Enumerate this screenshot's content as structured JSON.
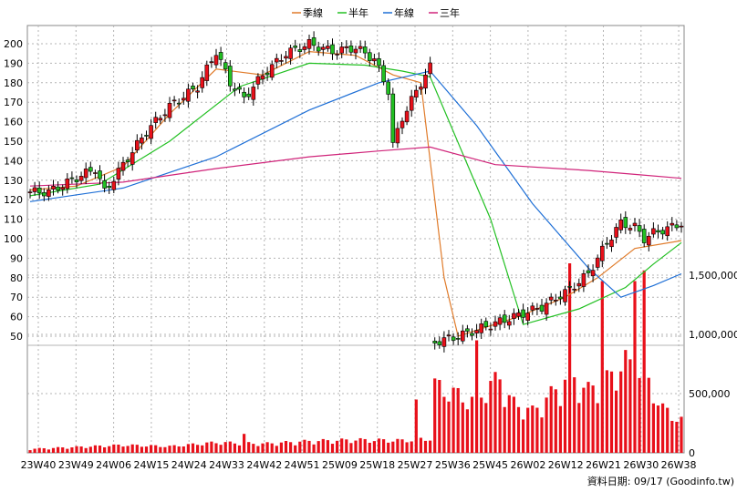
{
  "legend": [
    {
      "label": "季線",
      "color": "#e07b2a"
    },
    {
      "label": "半年",
      "color": "#22c022"
    },
    {
      "label": "年線",
      "color": "#1e6fd6"
    },
    {
      "label": "三年",
      "color": "#d0247a"
    }
  ],
  "footer_source": "資料日期: 09/17 (Goodinfo.tw)",
  "chart_data": {
    "type": "candlestick+volume",
    "x_tick_labels": [
      "23W40",
      "23W49",
      "24W06",
      "24W15",
      "24W24",
      "24W33",
      "24W42",
      "24W51",
      "25W09",
      "25W18",
      "25W27",
      "25W36",
      "25W45",
      "26W02",
      "26W12",
      "26W21",
      "26W30",
      "26W38"
    ],
    "price_axis": {
      "ylim": [
        50,
        200
      ],
      "ticks": [
        50,
        60,
        70,
        80,
        90,
        100,
        110,
        120,
        130,
        140,
        150,
        160,
        170,
        180,
        190,
        200
      ]
    },
    "volume_axis": {
      "ticks": [
        0,
        500000,
        1000000,
        1500000
      ],
      "tick_labels": [
        "0",
        "500,000",
        "1,000,000",
        "1,500,000"
      ]
    },
    "close_keypoints": [
      [
        0,
        124
      ],
      [
        4,
        124
      ],
      [
        9,
        130
      ],
      [
        14,
        136
      ],
      [
        16,
        124
      ],
      [
        20,
        138
      ],
      [
        25,
        155
      ],
      [
        30,
        168
      ],
      [
        36,
        178
      ],
      [
        40,
        196
      ],
      [
        43,
        180
      ],
      [
        46,
        172
      ],
      [
        50,
        184
      ],
      [
        55,
        195
      ],
      [
        60,
        200
      ],
      [
        65,
        196
      ],
      [
        70,
        198
      ],
      [
        74,
        192
      ],
      [
        77,
        176
      ],
      [
        78,
        148
      ],
      [
        80,
        162
      ],
      [
        84,
        180
      ],
      [
        86,
        188
      ],
      [
        87,
        47
      ],
      [
        92,
        50
      ],
      [
        98,
        55
      ],
      [
        104,
        60
      ],
      [
        110,
        65
      ],
      [
        116,
        74
      ],
      [
        120,
        82
      ],
      [
        124,
        98
      ],
      [
        127,
        108
      ],
      [
        130,
        106
      ],
      [
        132,
        100
      ],
      [
        134,
        103
      ],
      [
        138,
        106
      ],
      [
        140,
        108
      ]
    ],
    "series_lines": [
      {
        "name": "季線",
        "points": [
          [
            0,
            125
          ],
          [
            10,
            127
          ],
          [
            20,
            137
          ],
          [
            30,
            164
          ],
          [
            40,
            187
          ],
          [
            50,
            184
          ],
          [
            60,
            196
          ],
          [
            70,
            194
          ],
          [
            78,
            184
          ],
          [
            84,
            180
          ],
          [
            89,
            80
          ],
          [
            92,
            50
          ],
          [
            105,
            60
          ],
          [
            115,
            70
          ],
          [
            122,
            80
          ],
          [
            130,
            95
          ],
          [
            140,
            99
          ]
        ]
      },
      {
        "name": "半年",
        "points": [
          [
            0,
            122
          ],
          [
            15,
            128
          ],
          [
            30,
            150
          ],
          [
            45,
            178
          ],
          [
            60,
            190
          ],
          [
            72,
            189
          ],
          [
            80,
            186
          ],
          [
            86,
            183
          ],
          [
            99,
            110
          ],
          [
            106,
            56
          ],
          [
            118,
            64
          ],
          [
            128,
            75
          ],
          [
            134,
            87
          ],
          [
            140,
            98
          ]
        ]
      },
      {
        "name": "年線",
        "points": [
          [
            0,
            119
          ],
          [
            20,
            126
          ],
          [
            40,
            142
          ],
          [
            60,
            166
          ],
          [
            75,
            180
          ],
          [
            86,
            186
          ],
          [
            96,
            158
          ],
          [
            108,
            118
          ],
          [
            120,
            85
          ],
          [
            127,
            70
          ],
          [
            134,
            76
          ],
          [
            140,
            82
          ]
        ]
      },
      {
        "name": "三年",
        "points": [
          [
            0,
            127
          ],
          [
            20,
            129
          ],
          [
            40,
            136
          ],
          [
            60,
            142
          ],
          [
            75,
            145
          ],
          [
            86,
            147
          ],
          [
            100,
            138
          ],
          [
            120,
            135
          ],
          [
            130,
            133
          ],
          [
            140,
            131
          ]
        ]
      }
    ],
    "volume_keypoints": [
      [
        0,
        30000
      ],
      [
        10,
        45000
      ],
      [
        20,
        60000
      ],
      [
        30,
        50000
      ],
      [
        40,
        80000
      ],
      [
        50,
        70000
      ],
      [
        60,
        90000
      ],
      [
        70,
        100000
      ],
      [
        80,
        95000
      ],
      [
        86,
        110000
      ],
      [
        87,
        520000
      ],
      [
        95,
        400000
      ],
      [
        100,
        550000
      ],
      [
        104,
        380000
      ],
      [
        108,
        320000
      ],
      [
        112,
        450000
      ],
      [
        116,
        600000
      ],
      [
        120,
        480000
      ],
      [
        124,
        560000
      ],
      [
        128,
        700000
      ],
      [
        132,
        600000
      ],
      [
        136,
        340000
      ],
      [
        140,
        250000
      ]
    ],
    "volume_spikes": [
      [
        46,
        160000
      ],
      [
        83,
        450000
      ],
      [
        96,
        950000
      ],
      [
        101,
        620000
      ],
      [
        116,
        1600000
      ],
      [
        123,
        1450000
      ],
      [
        130,
        1450000
      ],
      [
        132,
        1540000
      ]
    ],
    "num_bars": 141
  }
}
